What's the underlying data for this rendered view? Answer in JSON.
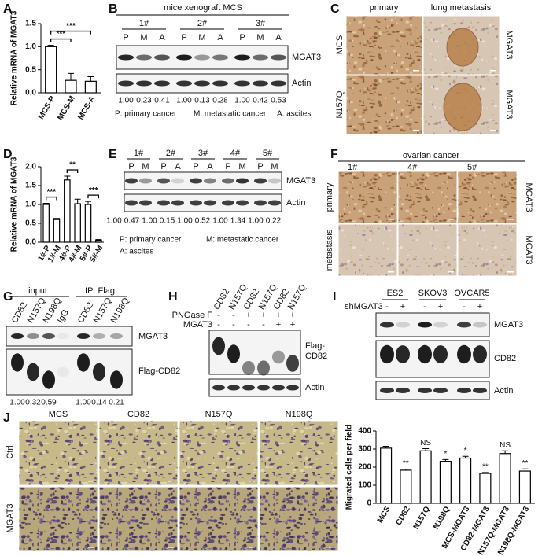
{
  "chart_data": [
    {
      "type": "bar",
      "y_label": "Relative mRNA of MGAT3",
      "categories": [
        "MCS-P",
        "MCS-M",
        "MCS-A"
      ],
      "values": [
        1.0,
        0.27,
        0.25
      ],
      "errors": [
        0.03,
        0.15,
        0.1
      ],
      "color": "#ffffff",
      "ylim": [
        0,
        1.5
      ],
      "yticks": [
        {
          "value": 0,
          "label": "0.0"
        },
        0.5,
        {
          "value": 1,
          "label": "1.0"
        },
        1.5
      ],
      "comparisons": [
        {
          "label": "***",
          "between": [
            "MCS-P",
            "MCS-A"
          ]
        },
        {
          "label": "***",
          "between": [
            "MCS-P",
            "MCS-M"
          ]
        }
      ]
    },
    {
      "type": "bar",
      "y_label": "Relative mRNA of MGAT3",
      "categories": [
        "1#-P",
        "1#-M",
        "4#-P",
        "4#-M",
        "5#-P",
        "5#-M"
      ],
      "values": [
        1.0,
        0.6,
        1.65,
        1.02,
        1.0,
        0.05
      ],
      "errors": [
        0.03,
        0.03,
        0.1,
        0.12,
        0.08,
        0.02
      ],
      "color": "#ffffff",
      "ylim": [
        0,
        2
      ],
      "yticks": [
        {
          "value": 0,
          "label": "0.0"
        },
        0.5,
        {
          "value": 1,
          "label": "1.0"
        },
        1.5,
        {
          "value": 2,
          "label": "2.0"
        }
      ],
      "comparisons": [
        {
          "label": "***",
          "between": [
            "1#-P",
            "1#-M"
          ]
        },
        {
          "label": "**",
          "between": [
            "4#-P",
            "4#-M"
          ]
        },
        {
          "label": "***",
          "between": [
            "5#-P",
            "5#-M"
          ]
        }
      ]
    },
    {
      "type": "bar",
      "y_label": "Migrated cells per field",
      "categories": [
        "MCS",
        "CD82",
        "N157Q",
        "N198Q",
        "MCS-MGAT3",
        "CD82-MGAT3",
        "N157Q-MGAT3",
        "N198Q-MGAT3"
      ],
      "values": [
        305,
        183,
        290,
        232,
        250,
        165,
        275,
        178
      ],
      "errors": [
        10,
        6,
        12,
        10,
        10,
        5,
        15,
        12
      ],
      "color": "#ffffff",
      "ylim": [
        0,
        400
      ],
      "yticks": [
        0,
        100,
        200,
        300,
        400
      ],
      "bar_labels": [
        null,
        "**",
        "NS",
        "*",
        "*",
        "**",
        "NS",
        "**"
      ]
    }
  ],
  "panels": {
    "A": {
      "letter": "A"
    },
    "B": {
      "letter": "B",
      "title": "mice xenograft MCS",
      "groups": [
        "1#",
        "2#",
        "3#"
      ],
      "lanes": [
        "P",
        "M",
        "A",
        "P",
        "M",
        "A",
        "P",
        "M",
        "A"
      ],
      "blots": [
        "MGAT3",
        "Actin"
      ],
      "quant": [
        "1.00",
        "0.23",
        "0.41",
        "1.00",
        "0.13",
        "0.28",
        "1.00",
        "0.42",
        "0.53"
      ],
      "legend": [
        "P: primary cancer",
        "M: metastatic cancer",
        "A: ascites"
      ]
    },
    "C": {
      "letter": "C",
      "columns": [
        "primary",
        "lung metastasis"
      ],
      "rows": [
        "MCS",
        "N157Q"
      ],
      "stain": [
        "MGAT3",
        "MGAT3"
      ]
    },
    "D": {
      "letter": "D"
    },
    "E": {
      "letter": "E",
      "groups": [
        "1#",
        "2#",
        "3#",
        "4#",
        "5#"
      ],
      "lanes": [
        "P",
        "M",
        "P",
        "A",
        "P",
        "A",
        "P",
        "M",
        "P",
        "M"
      ],
      "blots": [
        "MGAT3",
        "Actin"
      ],
      "quant": [
        "1.00",
        "0.47",
        "1.00",
        "0.15",
        "1.00",
        "0.52",
        "1.00",
        "1.34",
        "1.00",
        "0.22"
      ],
      "legend": [
        "P: primary cancer",
        "M: metastatic cancer",
        "A: ascites"
      ]
    },
    "F": {
      "letter": "F",
      "title": "ovarian cancer",
      "columns": [
        "1#",
        "4#",
        "5#"
      ],
      "rows": [
        "primary",
        "metastasis"
      ],
      "stain": [
        "MGAT3",
        "MGAT3"
      ]
    },
    "G": {
      "letter": "G",
      "groups": [
        "input",
        "IP: Flag"
      ],
      "lanes": [
        "CD82",
        "N157Q",
        "N198Q",
        "IgG",
        "CD82",
        "N157Q",
        "N198Q"
      ],
      "blots": [
        "MGAT3",
        "Flag-CD82"
      ],
      "quant": [
        "1.00",
        "0.32",
        "0.59",
        null,
        "1.00",
        "0.14",
        "0.21"
      ]
    },
    "H": {
      "letter": "H",
      "lanes": [
        "CD82",
        "N157Q",
        "CD82",
        "N157Q",
        "CD82",
        "N157Q"
      ],
      "treatments": [
        {
          "name": "PNGase F",
          "signs": [
            "-",
            "-",
            "+",
            "+",
            "+",
            "+"
          ]
        },
        {
          "name": "MGAT3",
          "signs": [
            "-",
            "-",
            "-",
            "-",
            "+",
            "+"
          ]
        }
      ],
      "blots": [
        [
          "Flag-",
          "CD82"
        ],
        [
          "Actin"
        ]
      ]
    },
    "I": {
      "letter": "I",
      "cells": [
        "ES2",
        "SKOV3",
        "OVCAR5"
      ],
      "treatment": "shMGAT3",
      "signs": [
        "-",
        "+",
        "-",
        "+",
        "-",
        "+"
      ],
      "blots": [
        "MGAT3",
        "CD82",
        "Actin"
      ]
    },
    "J": {
      "letter": "J",
      "columns": [
        "MCS",
        "CD82",
        "N157Q",
        "N198Q"
      ],
      "rows": [
        "Ctrl",
        "MGAT3"
      ]
    }
  }
}
